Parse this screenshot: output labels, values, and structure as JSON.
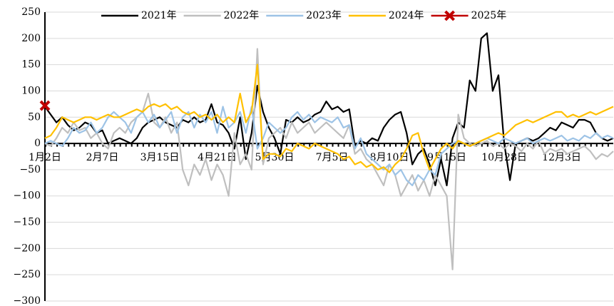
{
  "chart_data": {
    "type": "line",
    "categories": [
      "1月2日",
      null,
      null,
      null,
      null,
      null,
      null,
      null,
      null,
      null,
      "2月7日",
      null,
      null,
      null,
      null,
      null,
      null,
      null,
      null,
      null,
      "3月15日",
      null,
      null,
      null,
      null,
      null,
      null,
      null,
      null,
      null,
      "4月21日",
      null,
      null,
      null,
      null,
      null,
      null,
      null,
      null,
      null,
      "5月30日",
      null,
      null,
      null,
      null,
      null,
      null,
      null,
      null,
      null,
      "7月5日",
      null,
      null,
      null,
      null,
      null,
      null,
      null,
      null,
      null,
      "8月10日",
      null,
      null,
      null,
      null,
      null,
      null,
      null,
      null,
      null,
      "9月15日",
      null,
      null,
      null,
      null,
      null,
      null,
      null,
      null,
      null,
      "10月28日",
      null,
      null,
      null,
      null,
      null,
      null,
      null,
      null,
      null,
      "12月3日",
      null,
      null,
      null,
      null,
      null,
      null,
      null,
      null,
      null
    ],
    "series": [
      {
        "name": "2021年",
        "color": "#000000",
        "values": [
          70,
          55,
          40,
          50,
          35,
          25,
          30,
          40,
          35,
          20,
          25,
          0,
          5,
          10,
          5,
          0,
          10,
          30,
          40,
          45,
          50,
          40,
          35,
          30,
          45,
          40,
          50,
          40,
          45,
          75,
          40,
          35,
          20,
          -10,
          50,
          -30,
          20,
          110,
          60,
          30,
          10,
          -20,
          45,
          40,
          50,
          40,
          45,
          55,
          60,
          80,
          65,
          70,
          60,
          65,
          -5,
          5,
          0,
          10,
          5,
          30,
          45,
          55,
          60,
          20,
          -40,
          -20,
          -10,
          -40,
          -80,
          -30,
          -80,
          10,
          40,
          30,
          120,
          100,
          200,
          210,
          100,
          130,
          0,
          -70,
          0,
          5,
          10,
          5,
          10,
          20,
          30,
          25,
          40,
          35,
          30,
          45,
          45,
          40,
          20,
          10,
          5,
          10
        ]
      },
      {
        "name": "2022年",
        "color": "#bfbfbf",
        "values": [
          0,
          -5,
          10,
          30,
          20,
          40,
          25,
          30,
          10,
          20,
          0,
          -10,
          20,
          30,
          20,
          40,
          50,
          60,
          95,
          40,
          30,
          50,
          20,
          40,
          -50,
          -80,
          -40,
          -60,
          -30,
          -70,
          -40,
          -60,
          -100,
          20,
          -40,
          -20,
          -50,
          180,
          -40,
          10,
          20,
          30,
          10,
          40,
          20,
          30,
          40,
          20,
          30,
          40,
          30,
          20,
          10,
          35,
          -20,
          -10,
          -30,
          -40,
          -60,
          -80,
          -40,
          -60,
          -100,
          -80,
          -60,
          -90,
          -70,
          -100,
          -60,
          -80,
          -100,
          -240,
          55,
          10,
          0,
          -5,
          0,
          5,
          -5,
          0,
          -10,
          0,
          -5,
          -15,
          0,
          -10,
          5,
          -20,
          -10,
          -15,
          -10,
          -20,
          -15,
          -10,
          -5,
          -15,
          -30,
          -20,
          -25,
          -15
        ]
      },
      {
        "name": "2023年",
        "color": "#9dc3e6",
        "values": [
          0,
          5,
          0,
          -5,
          10,
          30,
          20,
          25,
          40,
          20,
          30,
          50,
          60,
          50,
          40,
          20,
          50,
          60,
          40,
          55,
          30,
          45,
          60,
          20,
          50,
          60,
          30,
          55,
          40,
          60,
          20,
          70,
          30,
          40,
          60,
          20,
          70,
          -10,
          10,
          40,
          30,
          20,
          30,
          50,
          60,
          45,
          55,
          40,
          50,
          45,
          40,
          50,
          30,
          35,
          -10,
          10,
          -20,
          -30,
          -40,
          -50,
          -40,
          -60,
          -50,
          -70,
          -80,
          -60,
          -70,
          -50,
          -60,
          -20,
          -10,
          0,
          5,
          0,
          -5,
          0,
          5,
          10,
          5,
          0,
          10,
          5,
          0,
          5,
          10,
          0,
          5,
          10,
          5,
          10,
          15,
          5,
          10,
          5,
          15,
          10,
          20,
          10,
          15,
          10
        ]
      },
      {
        "name": "2024年",
        "color": "#ffc000",
        "values": [
          10,
          15,
          30,
          50,
          45,
          40,
          45,
          50,
          50,
          45,
          50,
          55,
          50,
          50,
          55,
          60,
          65,
          60,
          70,
          75,
          70,
          75,
          65,
          70,
          60,
          55,
          60,
          50,
          55,
          45,
          55,
          40,
          50,
          40,
          95,
          40,
          60,
          150,
          -30,
          -20,
          -20,
          -25,
          -10,
          -15,
          0,
          -5,
          -10,
          0,
          -5,
          -10,
          -15,
          -20,
          -30,
          -25,
          -40,
          -35,
          -45,
          -40,
          -50,
          -45,
          -55,
          -40,
          -30,
          -10,
          15,
          20,
          -20,
          -50,
          -30,
          -10,
          0,
          -10,
          5,
          0,
          -5,
          0,
          5,
          10,
          15,
          20,
          15,
          25,
          35,
          40,
          45,
          40,
          45,
          50,
          55,
          60,
          60,
          50,
          55,
          50,
          55,
          60,
          55,
          60,
          65,
          70
        ]
      },
      {
        "name": "2025年",
        "color": "#c00000",
        "values": [
          72,
          null,
          null,
          null,
          null,
          null,
          null,
          null,
          null,
          null,
          null,
          null,
          null,
          null,
          null,
          null,
          null,
          null,
          null,
          null,
          null,
          null,
          null,
          null,
          null,
          null,
          null,
          null,
          null,
          null,
          null,
          null,
          null,
          null,
          null,
          null,
          null,
          null,
          null,
          null,
          null,
          null,
          null,
          null,
          null,
          null,
          null,
          null,
          null,
          null,
          null,
          null,
          null,
          null,
          null,
          null,
          null,
          null,
          null,
          null,
          null,
          null,
          null,
          null,
          null,
          null,
          null,
          null,
          null,
          null,
          null,
          null,
          null,
          null,
          null,
          null,
          null,
          null,
          null,
          null,
          null,
          null,
          null,
          null,
          null,
          null,
          null,
          null,
          null,
          null,
          null,
          null,
          null,
          null,
          null,
          null,
          null,
          null,
          null,
          null
        ]
      }
    ],
    "ylim": [
      -300,
      250
    ],
    "yticks": [
      {
        "value": -300,
        "label": "−300"
      },
      {
        "value": -250,
        "label": "−250"
      },
      {
        "value": -200,
        "label": "−200"
      },
      {
        "value": -150,
        "label": "−150"
      },
      {
        "value": -100,
        "label": "−100"
      },
      {
        "value": -50,
        "label": "−50"
      },
      0,
      50,
      100,
      150,
      200,
      250
    ],
    "grid": true,
    "legend": "top"
  }
}
